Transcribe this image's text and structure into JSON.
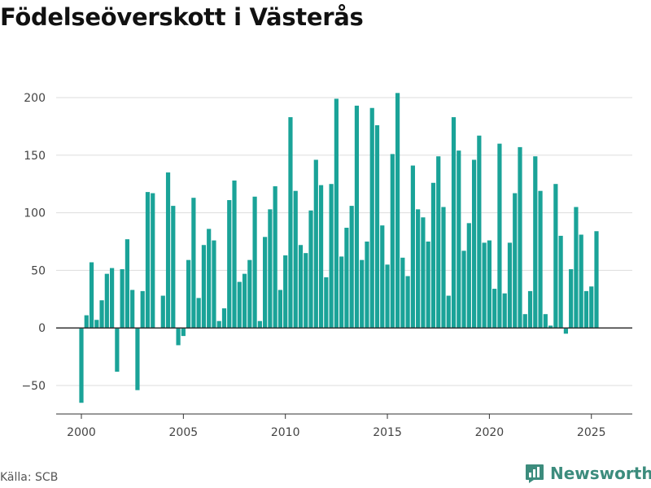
{
  "title": "Födelseöverskott i Västerås",
  "source": "Källa: SCB",
  "brand": "Newsworthy",
  "colors": {
    "bar": "#1aa398",
    "grid": "#dddddd",
    "zero": "#333333",
    "brand": "#3c8c7d"
  },
  "chart_data": {
    "type": "bar",
    "title": "Födelseöverskott i Västerås",
    "xlabel": "",
    "ylabel": "",
    "x_range": [
      1999.3,
      2027.0
    ],
    "ylim": [
      -75,
      212
    ],
    "y_ticks": [
      -50,
      0,
      50,
      100,
      150,
      200
    ],
    "x_ticks": [
      2000,
      2005,
      2010,
      2015,
      2020,
      2025
    ],
    "grid": true,
    "legend": "none",
    "bars": [
      {
        "x": 2000.0,
        "value": -65
      },
      {
        "x": 2000.25,
        "value": 11
      },
      {
        "x": 2000.5,
        "value": 57
      },
      {
        "x": 2000.75,
        "value": 7
      },
      {
        "x": 2001.0,
        "value": 24
      },
      {
        "x": 2001.25,
        "value": 47
      },
      {
        "x": 2001.5,
        "value": 52
      },
      {
        "x": 2001.75,
        "value": -38
      },
      {
        "x": 2002.0,
        "value": 51
      },
      {
        "x": 2002.25,
        "value": 77
      },
      {
        "x": 2002.5,
        "value": 33
      },
      {
        "x": 2002.75,
        "value": -54
      },
      {
        "x": 2003.0,
        "value": 32
      },
      {
        "x": 2003.25,
        "value": 118
      },
      {
        "x": 2003.5,
        "value": 117
      },
      {
        "x": 2003.75,
        "value": 0
      },
      {
        "x": 2004.0,
        "value": 28
      },
      {
        "x": 2004.25,
        "value": 135
      },
      {
        "x": 2004.5,
        "value": 106
      },
      {
        "x": 2004.75,
        "value": -15
      },
      {
        "x": 2005.0,
        "value": -7
      },
      {
        "x": 2005.25,
        "value": 59
      },
      {
        "x": 2005.5,
        "value": 113
      },
      {
        "x": 2005.75,
        "value": 26
      },
      {
        "x": 2006.0,
        "value": 72
      },
      {
        "x": 2006.25,
        "value": 86
      },
      {
        "x": 2006.5,
        "value": 76
      },
      {
        "x": 2006.75,
        "value": 6
      },
      {
        "x": 2007.0,
        "value": 17
      },
      {
        "x": 2007.25,
        "value": 111
      },
      {
        "x": 2007.5,
        "value": 128
      },
      {
        "x": 2007.75,
        "value": 40
      },
      {
        "x": 2008.0,
        "value": 47
      },
      {
        "x": 2008.25,
        "value": 59
      },
      {
        "x": 2008.5,
        "value": 114
      },
      {
        "x": 2008.75,
        "value": 6
      },
      {
        "x": 2009.0,
        "value": 79
      },
      {
        "x": 2009.25,
        "value": 103
      },
      {
        "x": 2009.5,
        "value": 123
      },
      {
        "x": 2009.75,
        "value": 33
      },
      {
        "x": 2010.0,
        "value": 63
      },
      {
        "x": 2010.25,
        "value": 183
      },
      {
        "x": 2010.5,
        "value": 119
      },
      {
        "x": 2010.75,
        "value": 72
      },
      {
        "x": 2011.0,
        "value": 65
      },
      {
        "x": 2011.25,
        "value": 102
      },
      {
        "x": 2011.5,
        "value": 146
      },
      {
        "x": 2011.75,
        "value": 124
      },
      {
        "x": 2012.0,
        "value": 44
      },
      {
        "x": 2012.25,
        "value": 125
      },
      {
        "x": 2012.5,
        "value": 199
      },
      {
        "x": 2012.75,
        "value": 62
      },
      {
        "x": 2013.0,
        "value": 87
      },
      {
        "x": 2013.25,
        "value": 106
      },
      {
        "x": 2013.5,
        "value": 193
      },
      {
        "x": 2013.75,
        "value": 59
      },
      {
        "x": 2014.0,
        "value": 75
      },
      {
        "x": 2014.25,
        "value": 191
      },
      {
        "x": 2014.5,
        "value": 176
      },
      {
        "x": 2014.75,
        "value": 89
      },
      {
        "x": 2015.0,
        "value": 55
      },
      {
        "x": 2015.25,
        "value": 151
      },
      {
        "x": 2015.5,
        "value": 204
      },
      {
        "x": 2015.75,
        "value": 61
      },
      {
        "x": 2016.0,
        "value": 45
      },
      {
        "x": 2016.25,
        "value": 141
      },
      {
        "x": 2016.5,
        "value": 103
      },
      {
        "x": 2016.75,
        "value": 96
      },
      {
        "x": 2017.0,
        "value": 75
      },
      {
        "x": 2017.25,
        "value": 126
      },
      {
        "x": 2017.5,
        "value": 149
      },
      {
        "x": 2017.75,
        "value": 105
      },
      {
        "x": 2018.0,
        "value": 28
      },
      {
        "x": 2018.25,
        "value": 183
      },
      {
        "x": 2018.5,
        "value": 154
      },
      {
        "x": 2018.75,
        "value": 67
      },
      {
        "x": 2019.0,
        "value": 91
      },
      {
        "x": 2019.25,
        "value": 146
      },
      {
        "x": 2019.5,
        "value": 167
      },
      {
        "x": 2019.75,
        "value": 74
      },
      {
        "x": 2020.0,
        "value": 76
      },
      {
        "x": 2020.25,
        "value": 34
      },
      {
        "x": 2020.5,
        "value": 160
      },
      {
        "x": 2020.75,
        "value": 30
      },
      {
        "x": 2021.0,
        "value": 74
      },
      {
        "x": 2021.25,
        "value": 117
      },
      {
        "x": 2021.5,
        "value": 157
      },
      {
        "x": 2021.75,
        "value": 12
      },
      {
        "x": 2022.0,
        "value": 32
      },
      {
        "x": 2022.25,
        "value": 149
      },
      {
        "x": 2022.5,
        "value": 119
      },
      {
        "x": 2022.75,
        "value": 12
      },
      {
        "x": 2023.0,
        "value": 2
      },
      {
        "x": 2023.25,
        "value": 125
      },
      {
        "x": 2023.5,
        "value": 80
      },
      {
        "x": 2023.75,
        "value": -5
      },
      {
        "x": 2024.0,
        "value": 51
      },
      {
        "x": 2024.25,
        "value": 105
      },
      {
        "x": 2024.5,
        "value": 81
      },
      {
        "x": 2024.75,
        "value": 32
      },
      {
        "x": 2025.0,
        "value": 36
      },
      {
        "x": 2025.25,
        "value": 84
      }
    ]
  }
}
